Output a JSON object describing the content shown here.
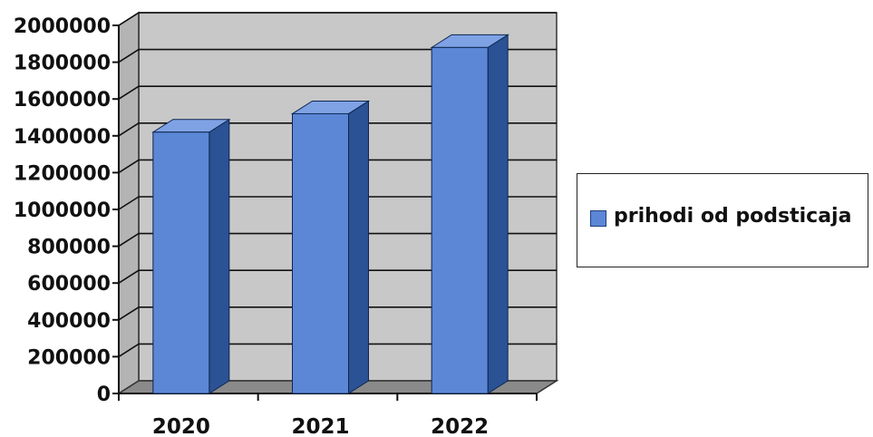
{
  "chart_data": {
    "type": "bar",
    "categories": [
      "2020",
      "2021",
      "2022"
    ],
    "series": [
      {
        "name": "prihodi od podsticaja",
        "values": [
          1420000,
          1520000,
          1880000
        ],
        "color": "#5b87d6"
      }
    ],
    "ylim": [
      0,
      2000000
    ],
    "yticks": [
      0,
      200000,
      400000,
      600000,
      800000,
      1000000,
      1200000,
      1400000,
      1600000,
      1800000,
      2000000
    ],
    "grid": true,
    "legend_position": "right",
    "style": "3d-column",
    "colors": {
      "bar_front": "#5b87d6",
      "bar_side": "#2a5294",
      "bar_top": "#7ea2e4",
      "wall": "#c8c8c8",
      "floor": "#8a8a8a"
    }
  }
}
